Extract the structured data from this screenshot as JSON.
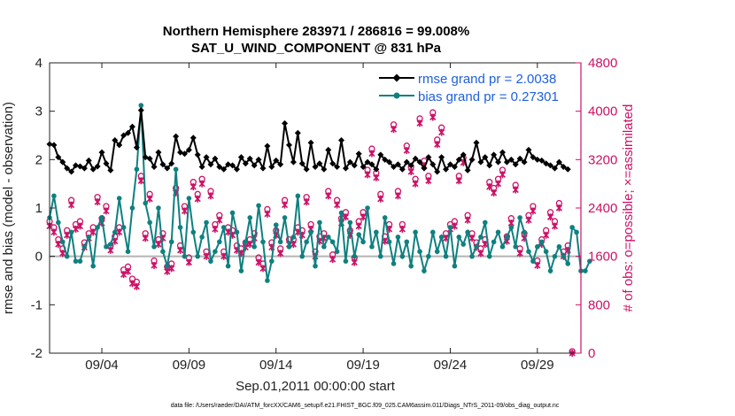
{
  "chart_data": {
    "type": "line",
    "title": "Northern Hemisphere 283971 / 286816 = 99.008%",
    "subtitle": "SAT_U_WIND_COMPONENT @ 831 hPa",
    "xlabel": "Sep.01,2011 00:00:00 start",
    "ylabel_left": "rmse and bias (model - observation)",
    "ylabel_right": "# of obs: o=possible; ×=assimilated",
    "footnote": "data file: /Users/raeder/DAI/ATM_forcXX/CAM6_setup/f.e21.FHIST_BGC.f09_025.CAM6assim.011/Diags_NTrS_2011-09/obs_diag_output.nc",
    "xlim": [
      1.0,
      31.5
    ],
    "ylim_left": [
      -2,
      4
    ],
    "ylim_right": [
      0,
      4800
    ],
    "x_ticks": [
      4,
      9,
      14,
      19,
      24,
      29
    ],
    "x_tick_labels": [
      "09/04",
      "09/09",
      "09/14",
      "09/19",
      "09/24",
      "09/29"
    ],
    "y_left_ticks": [
      "-2",
      "-1",
      "0",
      "1",
      "2",
      "3",
      "4"
    ],
    "y_right_ticks": [
      "0",
      "800",
      "1600",
      "2400",
      "3200",
      "4000",
      "4800"
    ],
    "colors": {
      "rmse": "#000000",
      "bias": "#0f8080",
      "obs": "#cc1166",
      "legend_text": "#1f5fe0",
      "zero_line": "#b3b3b3"
    },
    "series": [
      {
        "name": "rmse",
        "legend": "rmse grand pr = 2.0038",
        "values": [
          2.32,
          2.3,
          2.05,
          1.95,
          1.82,
          1.75,
          1.88,
          1.86,
          1.82,
          1.98,
          1.8,
          1.86,
          2.15,
          1.92,
          1.78,
          2.4,
          2.3,
          2.5,
          2.55,
          2.68,
          2.25,
          3.02,
          2.05,
          2.02,
          1.85,
          2.15,
          1.9,
          1.82,
          1.92,
          2.48,
          2.15,
          2.12,
          2.2,
          2.45,
          2.1,
          1.85,
          2.05,
          1.9,
          2.02,
          1.85,
          1.8,
          1.9,
          1.88,
          1.8,
          2.05,
          1.92,
          2.02,
          1.88,
          2.0,
          1.82,
          2.28,
          1.85,
          1.98,
          1.9,
          2.75,
          2.3,
          1.95,
          2.55,
          1.92,
          1.8,
          2.35,
          1.85,
          1.92,
          1.8,
          2.2,
          1.92,
          1.85,
          2.4,
          1.82,
          1.95,
          1.88,
          2.12,
          1.85,
          1.95,
          1.9,
          1.8,
          2.1,
          2.0,
          1.95,
          1.85,
          1.9,
          1.8,
          1.95,
          1.88,
          2.02,
          1.95,
          1.82,
          2.05,
          1.9,
          1.75,
          2.05,
          1.8,
          1.9,
          1.85,
          2.0,
          2.1,
          1.78,
          2.0,
          2.35,
          1.95,
          2.05,
          1.88,
          2.1,
          1.95,
          2.15,
          1.95,
          2.0,
          1.9,
          2.02,
          1.95,
          2.2,
          2.05,
          2.0,
          1.98,
          1.92,
          1.88,
          1.82,
          1.95,
          1.85,
          1.8
        ]
      },
      {
        "name": "bias",
        "legend": "bias grand pr = 0.27301",
        "values": [
          0.8,
          1.25,
          0.7,
          0.3,
          0.0,
          0.5,
          -0.1,
          -0.1,
          0.2,
          0.4,
          -0.2,
          0.6,
          0.8,
          0.2,
          0.25,
          0.5,
          1.2,
          0.6,
          0.1,
          1.0,
          1.8,
          3.12,
          1.1,
          0.7,
          0.2,
          1.0,
          0.1,
          -0.2,
          0.3,
          1.8,
          0.6,
          0.0,
          1.2,
          0.5,
          0.0,
          0.4,
          0.7,
          -0.1,
          0.1,
          0.3,
          0.6,
          -0.2,
          0.9,
          0.5,
          -0.3,
          0.3,
          0.8,
          0.2,
          1.05,
          0.3,
          -0.5,
          -0.1,
          0.65,
          0.3,
          0.8,
          0.2,
          0.4,
          1.25,
          0.0,
          0.3,
          0.5,
          -0.2,
          0.7,
          0.2,
          0.4,
          0.3,
          0.1,
          0.9,
          -0.1,
          0.7,
          0.0,
          0.45,
          0.3,
          1.0,
          0.2,
          0.5,
          0.0,
          0.8,
          0.3,
          -0.15,
          0.4,
          0.0,
          0.3,
          -0.2,
          0.5,
          0.1,
          -0.3,
          0.0,
          0.5,
          0.1,
          0.4,
          0.0,
          0.6,
          -0.2,
          0.4,
          0.25,
          0.5,
          0.0,
          0.2,
          0.4,
          0.7,
          0.0,
          0.3,
          0.5,
          0.2,
          0.4,
          0.6,
          0.2,
          0.8,
          0.5,
          0.1,
          -0.1,
          0.2,
          0.3,
          0.1,
          -0.3,
          0.0,
          0.2,
          0.0,
          -0.15,
          0.6,
          0.5,
          -0.3,
          -0.3,
          -0.1
        ]
      },
      {
        "name": "possible",
        "marker": "o",
        "values": [
          2150,
          2050,
          1850,
          1700,
          2000,
          2500,
          2100,
          2150,
          1800,
          1950,
          2050,
          2550,
          2200,
          2400,
          1750,
          1900,
          2050,
          1350,
          1400,
          1200,
          1150,
          2900,
          1950,
          2600,
          1500,
          1850,
          1950,
          1400,
          1450,
          2700,
          1750,
          2400,
          1550,
          2800,
          2600,
          2850,
          1650,
          2650,
          2100,
          2250,
          1650,
          2050,
          2000,
          1750,
          1700,
          1800,
          1850,
          1950,
          1550,
          1450,
          2350,
          1800,
          2000,
          1700,
          2500,
          1850,
          1850,
          2050,
          2000,
          2550,
          2100,
          1650,
          1900,
          1950,
          2650,
          1600,
          2500,
          2200,
          2300,
          2000,
          1550,
          2150,
          2300,
          3000,
          3350,
          2950,
          2600,
          1900,
          2100,
          3750,
          2650,
          2100,
          3400,
          3050,
          2850,
          3850,
          3150,
          2900,
          3950,
          3500,
          3700,
          1950,
          2100,
          2150,
          2900,
          3200,
          2250,
          1950,
          1800,
          1700,
          1850,
          2800,
          2700,
          2850,
          3000,
          1900,
          2200,
          2750,
          1700,
          1950,
          2250,
          2400,
          1500,
          1850,
          2000,
          2300,
          2150,
          2450,
          1650,
          1750,
          0
        ]
      },
      {
        "name": "assimilated",
        "marker": "x",
        "values": [
          2100,
          2000,
          1800,
          1650,
          1950,
          2450,
          2050,
          2100,
          1750,
          1900,
          2000,
          2500,
          2150,
          2350,
          1700,
          1850,
          2000,
          1300,
          1350,
          1150,
          1100,
          2850,
          1900,
          2550,
          1450,
          1800,
          1900,
          1350,
          1400,
          2650,
          1700,
          2350,
          1500,
          2750,
          2550,
          2800,
          1600,
          2600,
          2050,
          2200,
          1600,
          2000,
          1950,
          1700,
          1650,
          1750,
          1800,
          1900,
          1500,
          1400,
          2300,
          1750,
          1950,
          1650,
          2450,
          1800,
          1800,
          2000,
          1950,
          2500,
          2050,
          1600,
          1850,
          1900,
          2600,
          1550,
          2450,
          2150,
          2250,
          1950,
          1500,
          2100,
          2250,
          2950,
          3300,
          2900,
          2550,
          1850,
          2050,
          3700,
          2600,
          2050,
          3350,
          3000,
          2800,
          3800,
          3100,
          2850,
          3900,
          3450,
          3650,
          1900,
          2050,
          2100,
          2850,
          3150,
          2200,
          1900,
          1750,
          1650,
          1800,
          2750,
          2650,
          2800,
          2950,
          1850,
          2150,
          2700,
          1650,
          1900,
          2200,
          2350,
          1450,
          1800,
          1950,
          2250,
          2100,
          2400,
          1600,
          1700,
          0
        ]
      }
    ]
  }
}
